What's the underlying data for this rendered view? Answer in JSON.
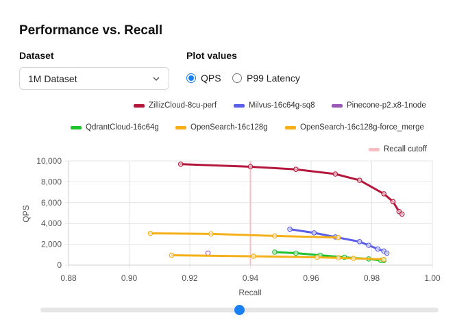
{
  "page": {
    "title": "Performance vs. Recall"
  },
  "controls": {
    "dataset_label": "Dataset",
    "dataset_value": "1M Dataset",
    "plot_values_label": "Plot values",
    "options": [
      {
        "label": "QPS",
        "selected": true
      },
      {
        "label": "P99 Latency",
        "selected": false
      }
    ],
    "accent": "#1a7ff0"
  },
  "slider": {
    "value": 0.5
  },
  "chart_data": {
    "type": "line",
    "xlabel": "Recall",
    "ylabel": "QPS",
    "xlim": [
      0.88,
      1.0
    ],
    "ylim": [
      0,
      10000
    ],
    "xticks": [
      "0.88",
      "0.90",
      "0.92",
      "0.94",
      "0.96",
      "0.98",
      "1.00"
    ],
    "yticks": [
      "0",
      "2,000",
      "4,000",
      "6,000",
      "8,000",
      "10,000"
    ],
    "grid": true,
    "legend_placement": "top",
    "cutoff": {
      "label": "Recall cutoff",
      "x": 0.94,
      "color": "#f7bfc4"
    },
    "series": [
      {
        "name": "ZillizCloud-8cu-perf",
        "color": "#b5173c",
        "x": [
          0.917,
          0.94,
          0.955,
          0.968,
          0.976,
          0.984,
          0.987,
          0.989,
          0.99
        ],
        "y": [
          9700,
          9450,
          9200,
          8750,
          8150,
          6850,
          6100,
          5150,
          4900
        ]
      },
      {
        "name": "Milvus-16c64g-sq8",
        "color": "#5a5ee8",
        "x": [
          0.953,
          0.961,
          0.968,
          0.976,
          0.979,
          0.982,
          0.984,
          0.985
        ],
        "y": [
          3450,
          3100,
          2700,
          2250,
          1900,
          1550,
          1350,
          1150
        ]
      },
      {
        "name": "Pinecone-p2.x8-1node",
        "color": "#9b59b6",
        "x": [
          0.926
        ],
        "y": [
          1150
        ]
      },
      {
        "name": "QdrantCloud-16c64g",
        "color": "#1fc12c",
        "x": [
          0.948,
          0.955,
          0.963,
          0.971,
          0.979,
          0.983,
          0.984
        ],
        "y": [
          1250,
          1150,
          950,
          750,
          600,
          450,
          450
        ]
      },
      {
        "name": "OpenSearch-16c128g",
        "color": "#f5b018",
        "x": [
          0.907,
          0.927,
          0.948,
          0.969
        ],
        "y": [
          3050,
          3000,
          2800,
          2650
        ]
      },
      {
        "name": "OpenSearch-16c128g-force_merge",
        "color": "#f5b018",
        "x": [
          0.914,
          0.941,
          0.962,
          0.969,
          0.974,
          0.984
        ],
        "y": [
          950,
          850,
          750,
          700,
          650,
          550
        ]
      }
    ]
  }
}
